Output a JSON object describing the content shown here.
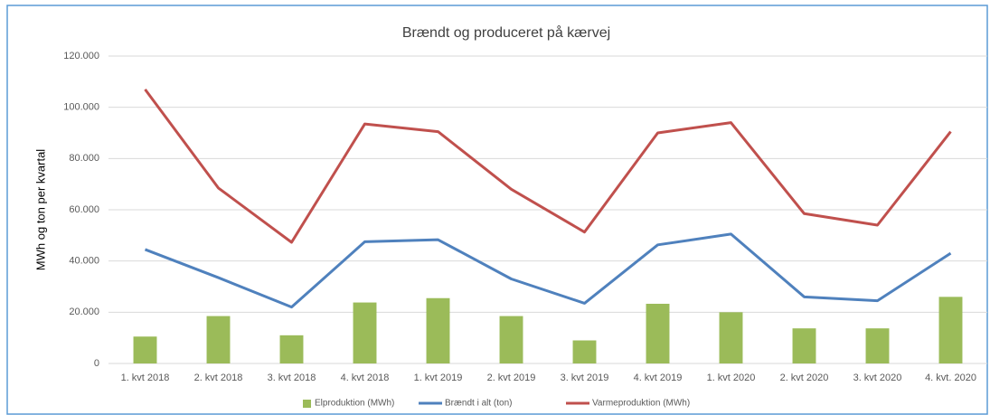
{
  "chart_data": {
    "type": "combo",
    "title": "Brændt og produceret på kærvej",
    "ylabel": "MWh og ton per kvartal",
    "categories": [
      "1. kvt 2018",
      "2. kvt 2018",
      "3. kvt 2018",
      "4. kvt 2018",
      "1. kvt 2019",
      "2. kvt 2019",
      "3. kvt 2019",
      "4. kvt 2019",
      "1. kvt 2020",
      "2. kvt 2020",
      "3. kvt 2020",
      "4. kvt. 2020"
    ],
    "series": [
      {
        "name": "Elproduktion (MWh)",
        "type": "bar",
        "color": "#9bbb59",
        "values": [
          10500,
          18500,
          11000,
          23800,
          25500,
          18500,
          9000,
          23300,
          20000,
          13700,
          13700,
          26000
        ]
      },
      {
        "name": "Brændt i alt (ton)",
        "type": "line",
        "color": "#4f81bd",
        "values": [
          44500,
          33500,
          22000,
          47500,
          48300,
          33000,
          23500,
          46300,
          50500,
          26000,
          24500,
          43000
        ]
      },
      {
        "name": "Varmeproduktion (MWh)",
        "type": "line",
        "color": "#c0504d",
        "values": [
          107000,
          68500,
          47300,
          93500,
          90500,
          68000,
          51300,
          90000,
          94000,
          58500,
          54000,
          90500
        ]
      }
    ],
    "ylim": [
      0,
      120000
    ],
    "yticks": [
      0,
      {
        "value": 20000,
        "label": "20.000"
      },
      {
        "value": 40000,
        "label": "40.000"
      },
      {
        "value": 60000,
        "label": "60.000"
      },
      {
        "value": 80000,
        "label": "80.000"
      },
      {
        "value": 100000,
        "label": "100.000"
      },
      {
        "value": 120000,
        "label": "120.000"
      }
    ],
    "grid": true,
    "legend": "bottom"
  }
}
